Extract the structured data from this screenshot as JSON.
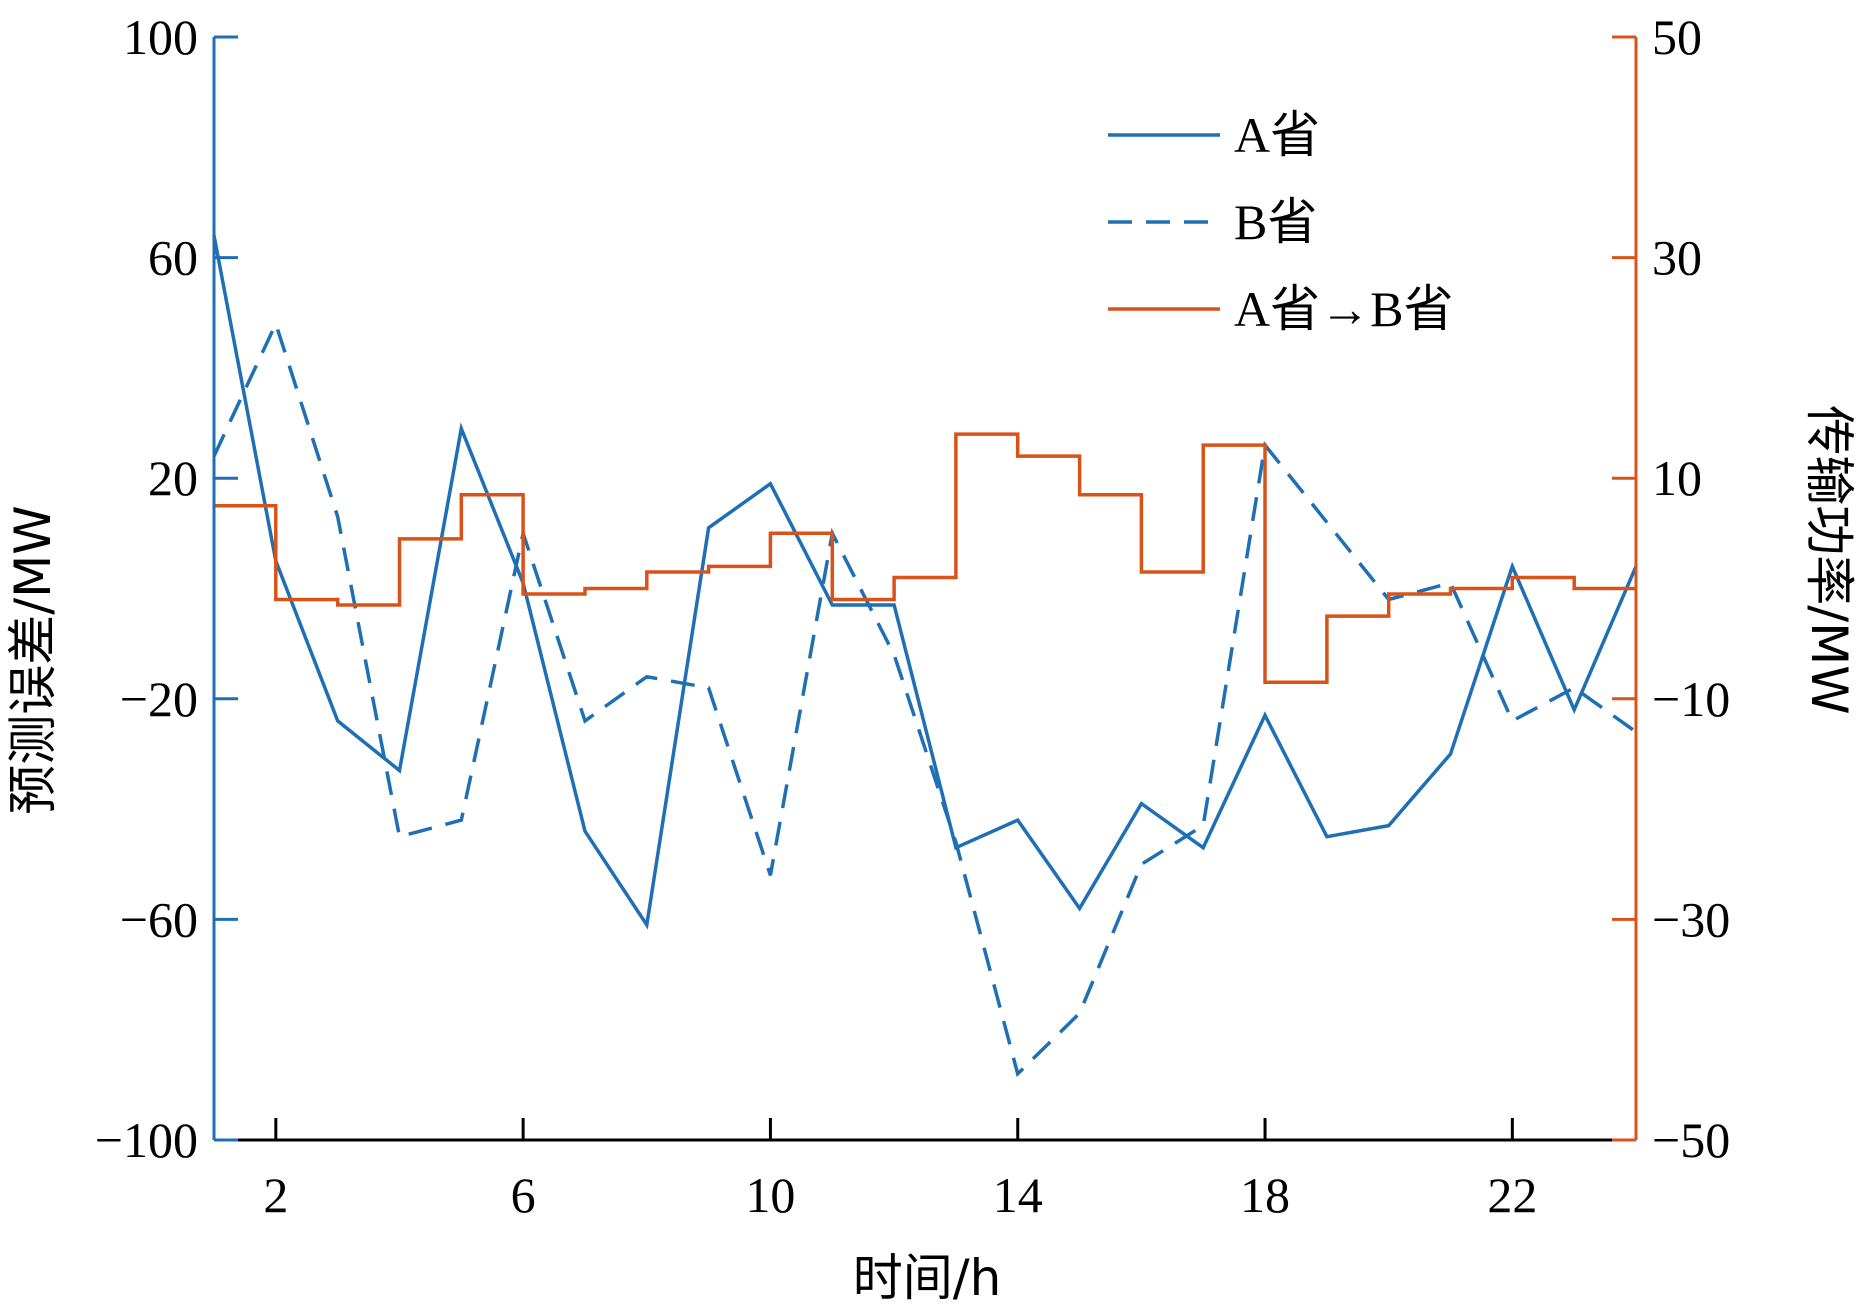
{
  "chart_data": {
    "type": "line",
    "xlabel": "时间/h",
    "ylabel_left": "预测误差/MW",
    "ylabel_right": "传输功率/MW",
    "xlim": [
      1,
      24
    ],
    "x_ticks": [
      2,
      6,
      10,
      14,
      18,
      22
    ],
    "x_tick_labels": [
      "2",
      "6",
      "10",
      "14",
      "18",
      "22"
    ],
    "ylim_left": [
      -100,
      100
    ],
    "y_left_ticks": [
      -100,
      -60,
      -20,
      20,
      60,
      100
    ],
    "y_left_tick_labels": [
      "−100",
      "−60",
      "−20",
      "20",
      "60",
      "100"
    ],
    "ylim_right": [
      -50,
      50
    ],
    "y_right_ticks": [
      -50,
      -30,
      -10,
      10,
      30,
      50
    ],
    "y_right_tick_labels": [
      "−50",
      "−30",
      "−10",
      "10",
      "30",
      "50"
    ],
    "x": [
      1,
      2,
      3,
      4,
      5,
      6,
      7,
      8,
      9,
      10,
      11,
      12,
      13,
      14,
      15,
      16,
      17,
      18,
      19,
      20,
      21,
      22,
      23,
      24
    ],
    "legend_placement": "top-center",
    "grid": false,
    "series": [
      {
        "name": "A省",
        "axis": "left",
        "style": "solid",
        "step": false,
        "color": "#1f6fb4",
        "values": [
          64,
          5,
          -24,
          -33,
          29,
          1,
          -44,
          -61,
          11,
          19,
          -3,
          -3,
          -47,
          -42,
          -58,
          -39,
          -47,
          -23,
          -45,
          -43,
          -30,
          4,
          -22,
          4
        ]
      },
      {
        "name": "B省",
        "axis": "left",
        "style": "dashed",
        "step": false,
        "color": "#1f6fb4",
        "values": [
          24,
          48,
          13,
          -45,
          -42,
          10,
          -24,
          -16,
          -18,
          -52,
          10,
          -12,
          -46,
          -88,
          -77,
          -50,
          -43,
          26,
          12,
          -2,
          1,
          -24,
          -18,
          -26
        ]
      },
      {
        "name": "A省→B省",
        "axis": "right",
        "style": "solid",
        "step": true,
        "color": "#d95319",
        "values": [
          7.5,
          -1,
          -1.5,
          4.5,
          8.5,
          -0.5,
          0,
          1.5,
          2,
          5,
          -1,
          1,
          14,
          12,
          8.5,
          1.5,
          13,
          -8.5,
          -2.5,
          -0.5,
          0,
          1,
          0,
          0
        ]
      }
    ]
  }
}
